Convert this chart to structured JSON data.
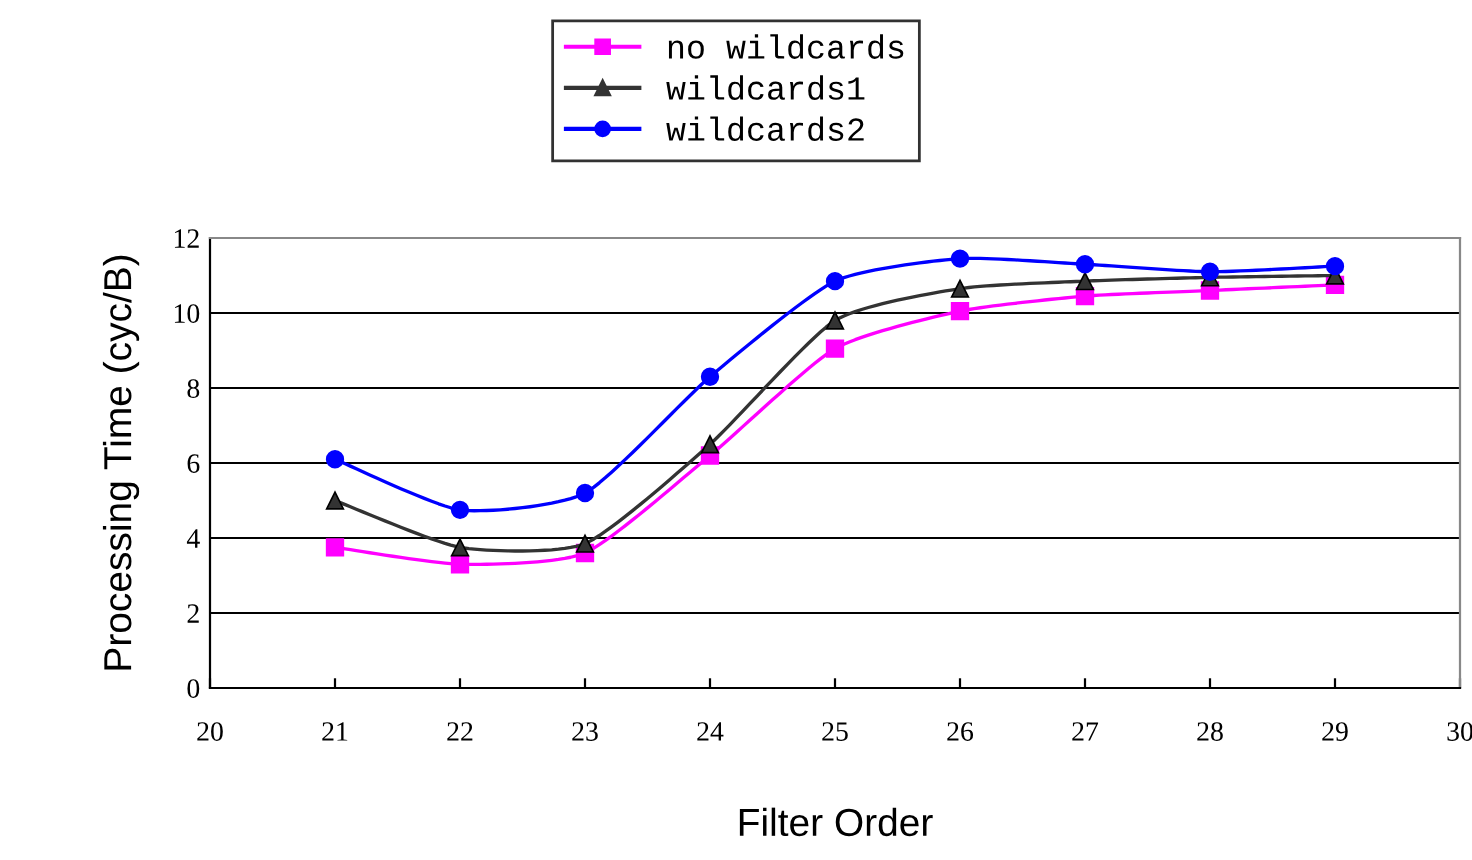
{
  "chart_data": {
    "type": "line",
    "xlabel": "Filter Order",
    "ylabel": "Processing Time (cyc/B)",
    "x": [
      21,
      22,
      23,
      24,
      25,
      26,
      27,
      28,
      29
    ],
    "series": [
      {
        "name": "no wildcards",
        "color": "#ff00ff",
        "marker": "square",
        "values": [
          3.75,
          3.3,
          3.6,
          6.2,
          9.05,
          10.05,
          10.45,
          10.6,
          10.75
        ]
      },
      {
        "name": "wildcards1",
        "color": "#333333",
        "marker": "triangle",
        "values": [
          5.0,
          3.75,
          3.85,
          6.5,
          9.8,
          10.65,
          10.85,
          10.95,
          11.0
        ]
      },
      {
        "name": "wildcards2",
        "color": "#0000ff",
        "marker": "circle",
        "values": [
          6.1,
          4.75,
          5.2,
          8.3,
          10.85,
          11.45,
          11.3,
          11.1,
          11.25
        ]
      }
    ],
    "xlim": [
      20,
      30
    ],
    "xticks": [
      20,
      21,
      22,
      23,
      24,
      25,
      26,
      27,
      28,
      29,
      30
    ],
    "ylim": [
      0,
      12
    ],
    "yticks": [
      0,
      2,
      4,
      6,
      8,
      10,
      12
    ],
    "grid": "y",
    "legend": "top",
    "line_style": "solid"
  }
}
